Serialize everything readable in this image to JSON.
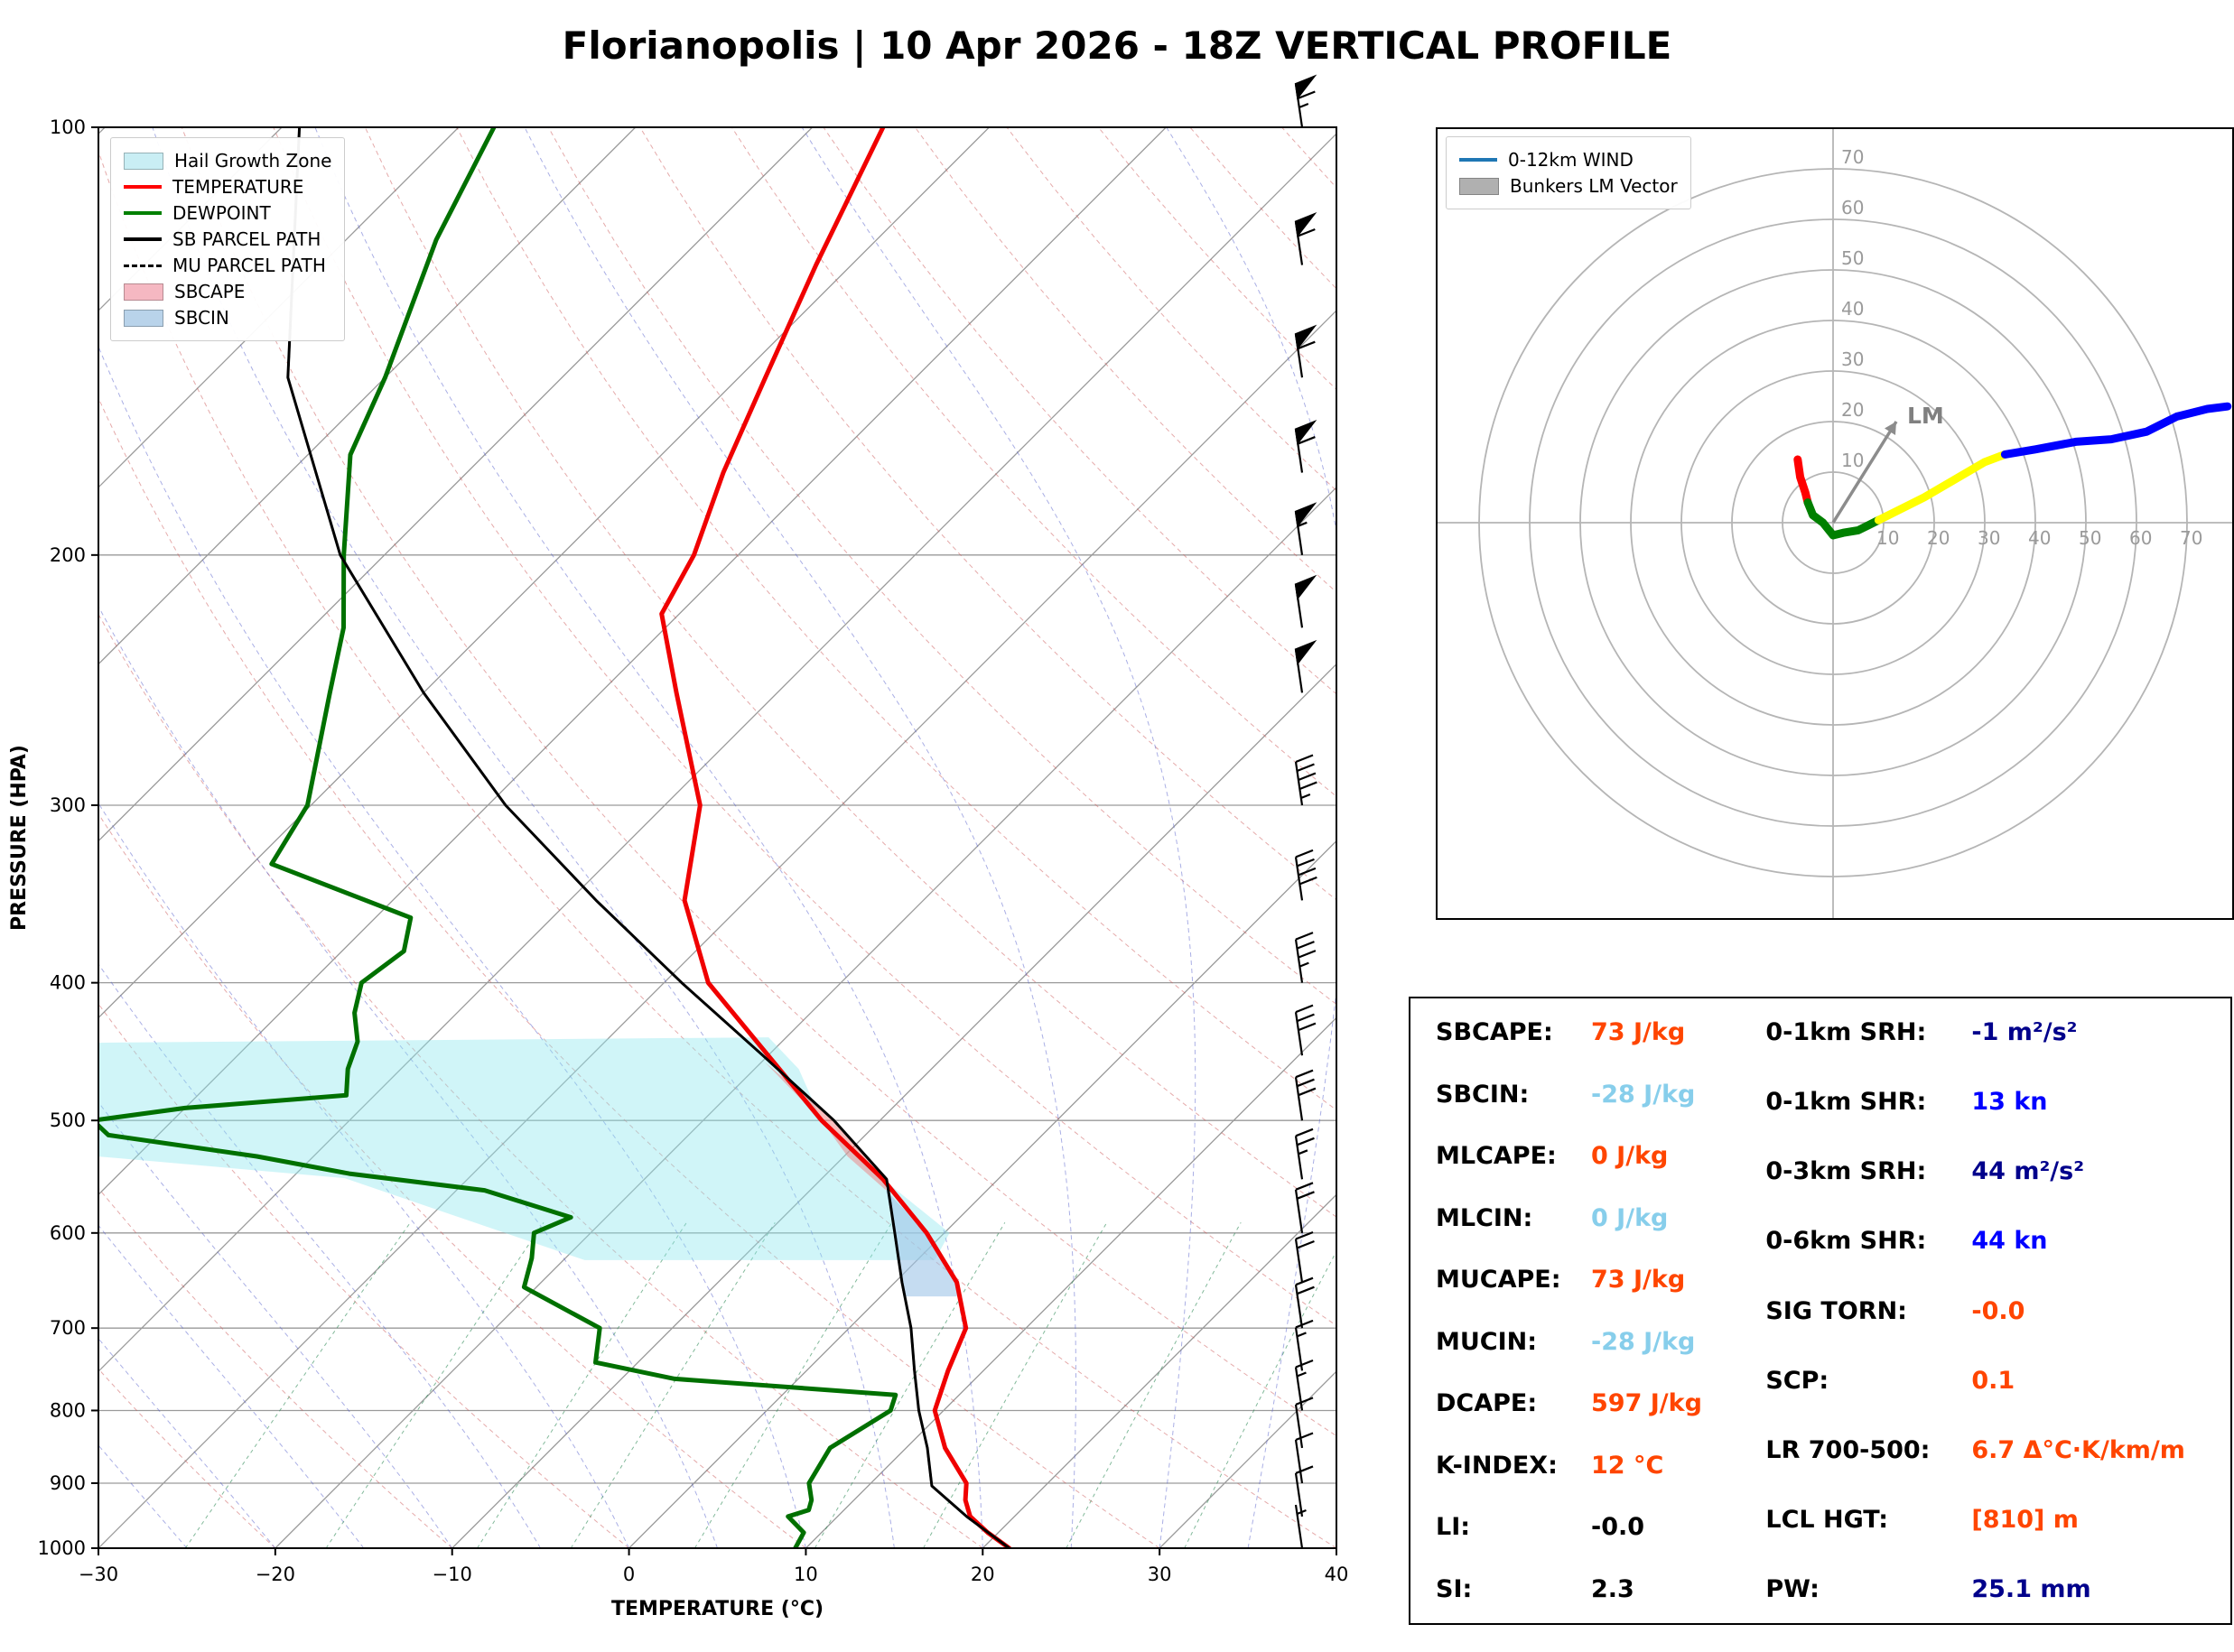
{
  "title": "Florianopolis | 10 Apr 2026 - 18Z VERTICAL PROFILE",
  "skewt_panel": {
    "xlabel": "TEMPERATURE (°C)",
    "ylabel": "PRESSURE (HPA)",
    "legend": [
      {
        "label": "Hail Growth Zone",
        "swatch": "patch",
        "color": "#c9eef4"
      },
      {
        "label": "TEMPERATURE",
        "swatch": "line",
        "color": "#ff0000"
      },
      {
        "label": "DEWPOINT",
        "swatch": "line",
        "color": "#008000"
      },
      {
        "label": "SB PARCEL PATH",
        "swatch": "line",
        "color": "#000000"
      },
      {
        "label": "MU PARCEL PATH",
        "swatch": "dashed",
        "color": "#000000"
      },
      {
        "label": "SBCAPE",
        "swatch": "patch",
        "color": "#f5b8c2"
      },
      {
        "label": "SBCIN",
        "swatch": "patch",
        "color": "#b9d3ea"
      }
    ]
  },
  "hodograph_panel": {
    "legend": [
      {
        "label": "0-12km WIND",
        "swatch": "line",
        "color": "#1f77b4"
      },
      {
        "label": "Bunkers LM Vector",
        "swatch": "patch",
        "color": "#b0b0b0"
      }
    ]
  },
  "stats_panel": {
    "left": [
      {
        "label": "SBCAPE:",
        "value": "73 J/kg",
        "color": "#ff4500"
      },
      {
        "label": "SBCIN:",
        "value": "-28 J/kg",
        "color": "#87ceeb"
      },
      {
        "label": "MLCAPE:",
        "value": "0 J/kg",
        "color": "#ff4500"
      },
      {
        "label": "MLCIN:",
        "value": "0 J/kg",
        "color": "#87ceeb"
      },
      {
        "label": "MUCAPE:",
        "value": "73 J/kg",
        "color": "#ff4500"
      },
      {
        "label": "MUCIN:",
        "value": "-28 J/kg",
        "color": "#87ceeb"
      },
      {
        "label": "DCAPE:",
        "value": "597 J/kg",
        "color": "#ff4500"
      },
      {
        "label": "K-INDEX:",
        "value": "12 °C",
        "color": "#ff4500"
      },
      {
        "label": "LI:",
        "value": "-0.0",
        "color": "#000000"
      },
      {
        "label": "SI:",
        "value": "2.3",
        "color": "#000000"
      }
    ],
    "right": [
      {
        "label": "0-1km SRH:",
        "value": "-1 m²/s²",
        "color": "#00008b"
      },
      {
        "label": "0-1km SHR:",
        "value": "13 kn",
        "color": "#0000ff"
      },
      {
        "label": "0-3km SRH:",
        "value": "44 m²/s²",
        "color": "#00008b"
      },
      {
        "label": "0-6km SHR:",
        "value": "44 kn",
        "color": "#0000ff"
      },
      {
        "label": "SIG TORN:",
        "value": "-0.0",
        "color": "#ff4500"
      },
      {
        "label": "SCP:",
        "value": "0.1",
        "color": "#ff4500"
      },
      {
        "label": "LR 700-500:",
        "value": "6.7 Δ°C·K/km/m",
        "color": "#ff4500"
      },
      {
        "label": "LCL HGT:",
        "value": "[810] m",
        "color": "#ff4500"
      },
      {
        "label": "PW:",
        "value": "25.1 mm",
        "color": "#00008b"
      }
    ]
  },
  "chart_data": {
    "type": "skewt_sounding",
    "title": "Florianopolis | 10 Apr 2026 - 18Z VERTICAL PROFILE",
    "x_axis": {
      "label": "TEMPERATURE (°C)",
      "ticks": [
        -30,
        -20,
        -10,
        0,
        10,
        20,
        30,
        40
      ],
      "range": [
        -30,
        40
      ]
    },
    "y_axis": {
      "label": "PRESSURE (HPA)",
      "ticks": [
        100,
        200,
        300,
        400,
        500,
        600,
        700,
        800,
        900,
        1000
      ],
      "range": [
        1000,
        100
      ],
      "scale": "log"
    },
    "series": [
      {
        "name": "TEMPERATURE",
        "color": "#f00000",
        "style": "solid",
        "width": 5,
        "pressure": [
          1000,
          975,
          950,
          925,
          900,
          850,
          800,
          750,
          700,
          650,
          600,
          550,
          500,
          450,
          400,
          350,
          300,
          250,
          220,
          200,
          175,
          150,
          125,
          100
        ],
        "temperature": [
          21.5,
          19.4,
          17.5,
          16.3,
          15.4,
          12.2,
          9.5,
          8.0,
          6.6,
          3.5,
          -1.0,
          -6.5,
          -13.3,
          -20.0,
          -27.5,
          -33.5,
          -38.0,
          -45.7,
          -51.0,
          -52.5,
          -55.5,
          -58.5,
          -62.0,
          -66.0
        ]
      },
      {
        "name": "DEWPOINT",
        "color": "#007000",
        "style": "solid",
        "width": 5,
        "pressure": [
          1000,
          975,
          950,
          940,
          925,
          900,
          850,
          800,
          780,
          760,
          740,
          700,
          655,
          625,
          600,
          585,
          560,
          545,
          530,
          512,
          500,
          490,
          480,
          460,
          440,
          420,
          400,
          380,
          360,
          330,
          300,
          250,
          225,
          200,
          170,
          150,
          120,
          100
        ],
        "temperature": [
          9.4,
          9.0,
          7.2,
          8.0,
          7.6,
          6.5,
          5.7,
          7.0,
          6.4,
          -7.0,
          -12.4,
          -14.1,
          -20.7,
          -21.9,
          -23.2,
          -22.0,
          -28.4,
          -37.0,
          -43.2,
          -52.8,
          -54.5,
          -50.0,
          -41.6,
          -43.0,
          -44.0,
          -45.8,
          -47.1,
          -46.5,
          -48.0,
          -58.9,
          -60.2,
          -65.3,
          -68.2,
          -72.3,
          -77.6,
          -80.0,
          -84.9,
          -88.0
        ]
      },
      {
        "name": "SB PARCEL PATH",
        "color": "#000000",
        "style": "solid",
        "width": 3,
        "pressure": [
          1000,
          950,
          904,
          850,
          800,
          750,
          700,
          650,
          600,
          550,
          500,
          450,
          400,
          350,
          300,
          250,
          200,
          150,
          100
        ],
        "temperature": [
          21.5,
          17.3,
          13.6,
          11.2,
          8.6,
          6.1,
          3.5,
          0.4,
          -2.8,
          -6.3,
          -12.6,
          -20.3,
          -29.0,
          -38.5,
          -49.0,
          -60.0,
          -72.5,
          -85.5,
          -99.0
        ]
      },
      {
        "name": "MU PARCEL PATH",
        "color": "#000000",
        "style": "dashed",
        "width": 2.5,
        "pressure": [
          1000,
          950,
          904,
          850,
          800,
          750,
          700,
          650,
          600,
          550,
          500,
          450,
          400,
          350,
          300,
          250,
          200,
          150,
          100
        ],
        "temperature": [
          21.5,
          17.3,
          13.6,
          11.2,
          8.6,
          6.1,
          3.5,
          0.4,
          -2.8,
          -6.3,
          -12.6,
          -20.3,
          -29.0,
          -38.5,
          -49.0,
          -60.0,
          -72.5,
          -85.5,
          -99.0
        ]
      }
    ],
    "shading": [
      {
        "name": "Hail Growth Zone",
        "color": "#8fe7ee",
        "opacity": 0.42,
        "polygon_p_T": [
          [
            441,
            -60
          ],
          [
            437,
            -21
          ],
          [
            460,
            -17.5
          ],
          [
            500,
            -13.3
          ],
          [
            550,
            -6.5
          ],
          [
            600,
            0.3
          ],
          [
            627,
            1.0
          ],
          [
            627,
            -18.8
          ],
          [
            549,
            -37
          ],
          [
            530,
            -52.2
          ]
        ]
      },
      {
        "name": "SBCAPE",
        "color": "#f08080",
        "opacity": 0.5,
        "polygon_p_T": [
          [
            560,
            -5.7
          ],
          [
            530,
            -9.8
          ],
          [
            500,
            -13.3
          ],
          [
            455,
            -19.8
          ],
          [
            500,
            -12.6
          ],
          [
            550,
            -6.3
          ]
        ]
      },
      {
        "name": "SBCIN",
        "color": "#9fc5e8",
        "opacity": 0.6,
        "polygon_p_T": [
          [
            665,
            4.3
          ],
          [
            650,
            3.5
          ],
          [
            600,
            -1.0
          ],
          [
            560,
            -5.7
          ],
          [
            600,
            -2.8
          ],
          [
            650,
            0.4
          ],
          [
            665,
            1.4
          ]
        ]
      }
    ],
    "wind_barbs": {
      "pressure": [
        1000,
        950,
        900,
        850,
        800,
        750,
        700,
        650,
        600,
        550,
        500,
        450,
        400,
        350,
        300,
        250,
        225,
        200,
        175,
        150,
        125,
        100
      ],
      "speed_kn": [
        5,
        8,
        10,
        12,
        15,
        15,
        18,
        20,
        22,
        25,
        28,
        32,
        35,
        40,
        45,
        50,
        52,
        55,
        58,
        60,
        62,
        65
      ]
    },
    "hodograph": {
      "rings_kn": [
        10,
        20,
        30,
        40,
        50,
        60,
        70
      ],
      "segments": [
        {
          "layer": "0-3km",
          "color": "#ff0000",
          "points": [
            [
              -7,
              12.5
            ],
            [
              -6.5,
              9
            ],
            [
              -5.5,
              6
            ],
            [
              -5,
              4
            ]
          ]
        },
        {
          "layer": "3-6km",
          "color": "#008000",
          "points": [
            [
              -5,
              4
            ],
            [
              -4,
              1.5
            ],
            [
              -2,
              0
            ],
            [
              0,
              -2.5
            ],
            [
              2,
              -2
            ],
            [
              5,
              -1.5
            ],
            [
              7,
              -0.5
            ],
            [
              9,
              0.5
            ]
          ]
        },
        {
          "layer": "6-9km",
          "color": "#ffff00",
          "points": [
            [
              9,
              0.5
            ],
            [
              13,
              2.5
            ],
            [
              18,
              5
            ],
            [
              24,
              8.5
            ],
            [
              30,
              12
            ],
            [
              34,
              13.5
            ]
          ]
        },
        {
          "layer": "9-12km",
          "color": "#0000ff",
          "points": [
            [
              34,
              13.5
            ],
            [
              40,
              14.5
            ],
            [
              48,
              16
            ],
            [
              55,
              16.5
            ],
            [
              62,
              18
            ],
            [
              68,
              21
            ],
            [
              74,
              22.5
            ],
            [
              78,
              23
            ]
          ]
        }
      ],
      "lm_vector": {
        "u": 12.5,
        "v": 20,
        "label": "LM"
      }
    }
  }
}
